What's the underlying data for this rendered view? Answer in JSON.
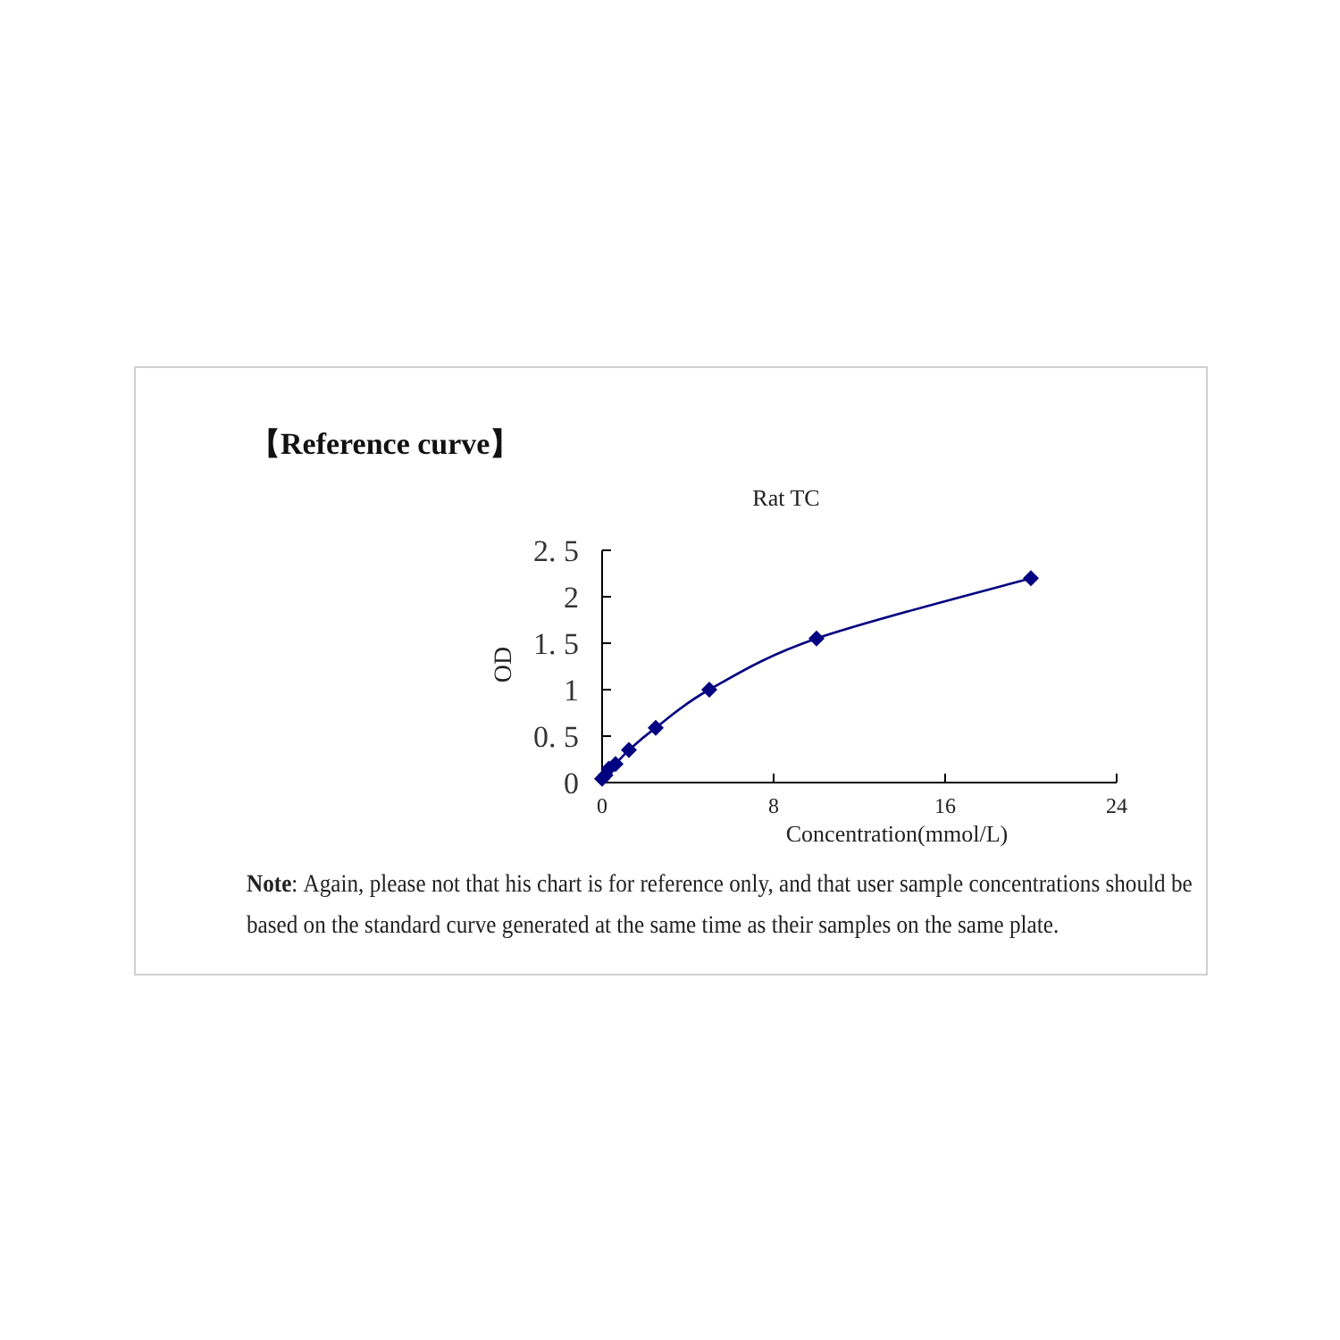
{
  "chart_data": {
    "type": "line",
    "title": "【Reference curve】",
    "subtitle": "Rat TC",
    "xlabel": "Concentration(mmol/L)",
    "ylabel": "OD",
    "annotations": [
      "**Note**: Again, please not that his chart is for reference only, and that user sample concentrations should be based on the standard curve generated at the same time as their samples on the same plate."
    ],
    "series": [
      {
        "color": "#000080",
        "x": [
          0,
          0.15625,
          0.3125,
          0.625,
          1.25,
          2.5,
          5,
          10,
          20
        ],
        "values": [
          0.04,
          0.08,
          0.15,
          0.2,
          0.35,
          0.59,
          1.0,
          1.55,
          2.2
        ]
      }
    ],
    "xlim": [
      0,
      24
    ],
    "xticks": [
      0,
      8,
      16,
      24
    ],
    "ylim": [
      0,
      2.5
    ],
    "yticks": [
      0,
      {
        "value": 0.5,
        "label": "0. 5"
      },
      1,
      {
        "value": 1.5,
        "label": "1. 5"
      },
      2,
      {
        "value": 2.5,
        "label": "2. 5"
      }
    ],
    "marker": "diamond",
    "line_style": "solid",
    "grid": false
  }
}
